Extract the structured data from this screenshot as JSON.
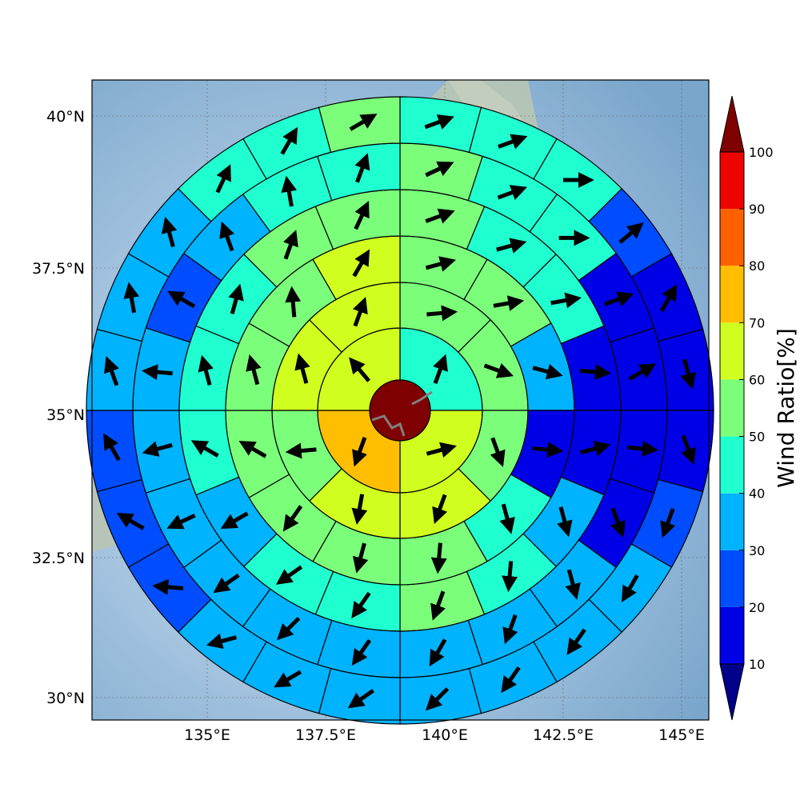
{
  "map": {
    "lat_ticks": [
      "40°N",
      "37.5°N",
      "35°N",
      "32.5°N",
      "30°N"
    ],
    "lon_ticks": [
      "135°E",
      "137.5°E",
      "140°E",
      "142.5°E",
      "145°E"
    ],
    "lat_range": [
      29.6,
      40.6
    ],
    "lon_range": [
      132.5,
      145.6
    ],
    "center": {
      "lon": 139.0,
      "lat": 35.1
    },
    "grid": true,
    "background": "shaded-relief terrain"
  },
  "colorbar": {
    "label": "Wind Ratio[%]",
    "ticks": [
      "10",
      "20",
      "30",
      "40",
      "50",
      "60",
      "70",
      "80",
      "90",
      "100"
    ],
    "levels": [
      10,
      20,
      30,
      40,
      50,
      60,
      70,
      80,
      90,
      100
    ],
    "colors": [
      "#00008b",
      "#0000e6",
      "#004dff",
      "#00b3ff",
      "#1fffd0",
      "#7bff7b",
      "#d0ff1f",
      "#ffbf00",
      "#ff6100",
      "#ed0400",
      "#7f0000"
    ],
    "extend": "both"
  },
  "chart_data": {
    "type": "polar-sector-heatmap",
    "units": "Wind Ratio[%]",
    "center_value": 100,
    "rings": [
      {
        "sectors": 4,
        "values": [
          45,
          65,
          75,
          65
        ],
        "wind_dir_deg": [
          20,
          75,
          200,
          320
        ]
      },
      {
        "sectors": 8,
        "values": [
          52,
          52,
          55,
          60,
          62,
          57,
          65,
          62
        ],
        "wind_dir_deg": [
          85,
          110,
          160,
          200,
          190,
          265,
          345,
          20
        ]
      },
      {
        "sectors": 12,
        "values": [
          55,
          52,
          35,
          15,
          45,
          52,
          55,
          50,
          55,
          55,
          55,
          65
        ],
        "wind_dir_deg": [
          75,
          80,
          105,
          95,
          165,
          185,
          195,
          215,
          300,
          345,
          355,
          30
        ]
      },
      {
        "sectors": 16,
        "values": [
          55,
          45,
          45,
          15,
          15,
          35,
          45,
          55,
          45,
          45,
          35,
          45,
          45,
          45,
          55,
          55
        ],
        "wind_dir_deg": [
          70,
          75,
          80,
          95,
          75,
          165,
          185,
          200,
          215,
          235,
          240,
          300,
          345,
          15,
          20,
          25
        ]
      },
      {
        "sectors": 20,
        "values": [
          55,
          45,
          45,
          15,
          15,
          15,
          15,
          35,
          35,
          35,
          35,
          35,
          35,
          35,
          35,
          35,
          25,
          35,
          45,
          45
        ],
        "wind_dir_deg": [
          65,
          70,
          90,
          70,
          60,
          95,
          160,
          165,
          200,
          210,
          215,
          225,
          235,
          245,
          255,
          275,
          300,
          340,
          350,
          20
        ]
      },
      {
        "sectors": 24,
        "values": [
          45,
          45,
          45,
          25,
          15,
          15,
          15,
          25,
          35,
          35,
          35,
          35,
          35,
          35,
          35,
          25,
          25,
          25,
          35,
          35,
          35,
          45,
          45,
          55
        ],
        "wind_dir_deg": [
          70,
          70,
          90,
          50,
          30,
          165,
          160,
          200,
          210,
          215,
          215,
          225,
          235,
          240,
          255,
          275,
          300,
          330,
          340,
          350,
          345,
          25,
          30,
          60
        ]
      }
    ]
  }
}
